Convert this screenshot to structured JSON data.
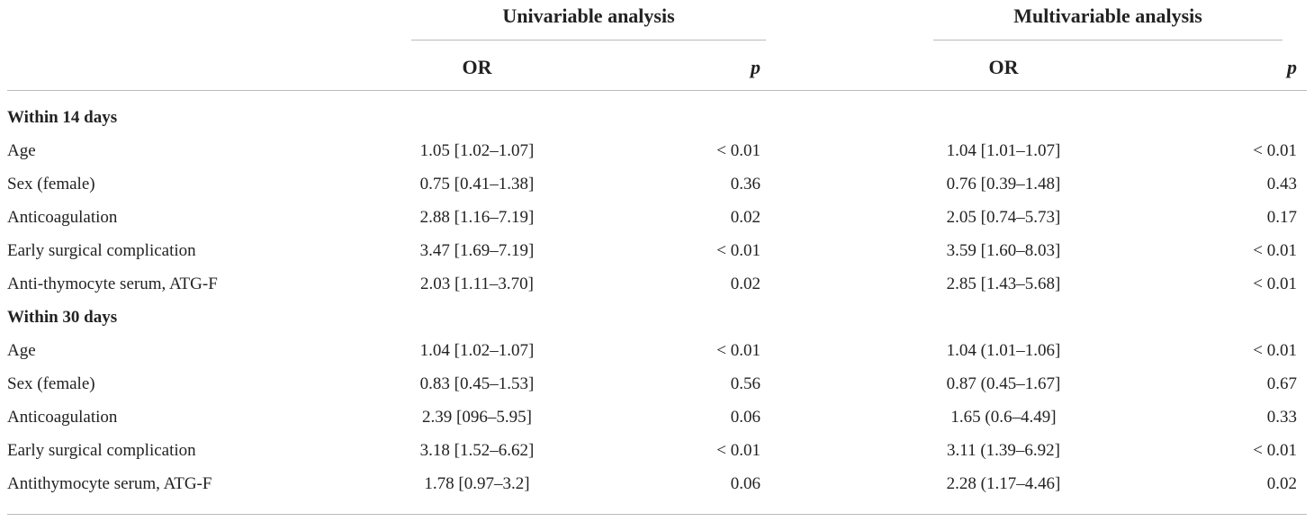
{
  "header": {
    "groups": [
      "Univariable analysis",
      "Multivariable analysis"
    ],
    "columns": [
      "OR",
      "p",
      "OR",
      "p"
    ]
  },
  "sections": [
    {
      "title": "Within 14 days",
      "rows": [
        [
          "Age",
          "1.05 [1.02–1.07]",
          "< 0.01",
          "1.04 [1.01–1.07]",
          "< 0.01"
        ],
        [
          "Sex (female)",
          "0.75 [0.41–1.38]",
          "0.36",
          "0.76 [0.39–1.48]",
          "0.43"
        ],
        [
          "Anticoagulation",
          "2.88 [1.16–7.19]",
          "0.02",
          "2.05 [0.74–5.73]",
          "0.17"
        ],
        [
          "Early surgical complication",
          "3.47 [1.69–7.19]",
          "< 0.01",
          "3.59 [1.60–8.03]",
          "< 0.01"
        ],
        [
          "Anti-thymocyte serum, ATG-F",
          "2.03 [1.11–3.70]",
          "0.02",
          "2.85 [1.43–5.68]",
          "< 0.01"
        ]
      ]
    },
    {
      "title": "Within 30 days",
      "rows": [
        [
          "Age",
          "1.04 [1.02–1.07]",
          "< 0.01",
          "1.04 (1.01–1.06]",
          "< 0.01"
        ],
        [
          "Sex (female)",
          "0.83 [0.45–1.53]",
          "0.56",
          "0.87 (0.45–1.67]",
          "0.67"
        ],
        [
          "Anticoagulation",
          "2.39 [096–5.95]",
          "0.06",
          "1.65 (0.6–4.49]",
          "0.33"
        ],
        [
          "Early surgical complication",
          "3.18 [1.52–6.62]",
          "< 0.01",
          "3.11 (1.39–6.92]",
          "< 0.01"
        ],
        [
          "Antithymocyte serum, ATG-F",
          "1.78 [0.97–3.2]",
          "0.06",
          "2.28 (1.17–4.46]",
          "0.02"
        ]
      ]
    }
  ]
}
